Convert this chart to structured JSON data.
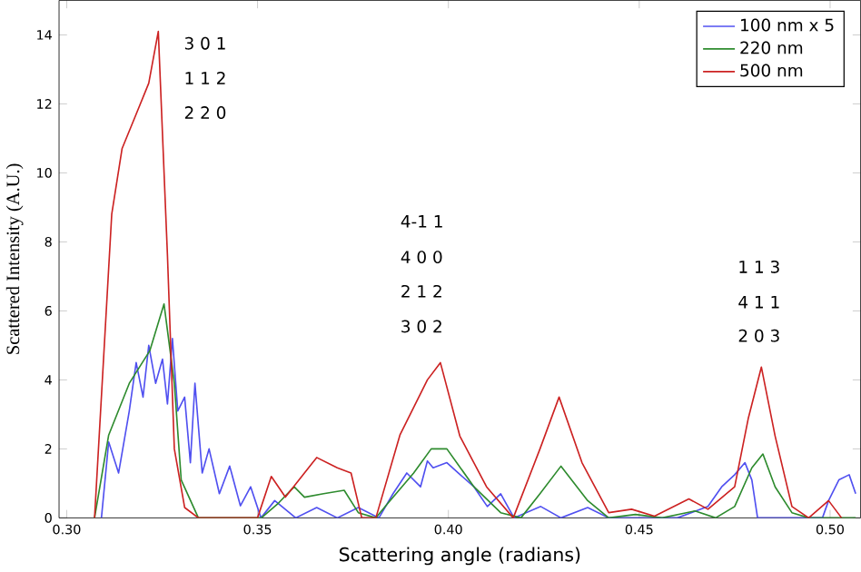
{
  "chart_data": {
    "type": "line",
    "xlabel": "Scattering angle (radians)",
    "ylabel": "Scattered Intensity (A.U.)",
    "xlim": [
      0.298,
      0.508
    ],
    "ylim": [
      0,
      15
    ],
    "xticks": [
      {
        "value": 0.3,
        "label": "0.30"
      },
      {
        "value": 0.35,
        "label": "0.35"
      },
      {
        "value": 0.4,
        "label": "0.40"
      },
      {
        "value": 0.45,
        "label": "0.45"
      },
      {
        "value": 0.5,
        "label": "0.50"
      }
    ],
    "yticks": [
      0,
      2,
      4,
      6,
      8,
      10,
      12,
      14
    ],
    "legend": "top right",
    "grid": false,
    "series": [
      {
        "name": "100 nm x 5",
        "color": "#5050f0",
        "x": [
          0.3091,
          0.311,
          0.3136,
          0.3164,
          0.3182,
          0.32,
          0.3215,
          0.3233,
          0.3251,
          0.3264,
          0.3277,
          0.3291,
          0.3309,
          0.3324,
          0.3336,
          0.3355,
          0.3373,
          0.34,
          0.3427,
          0.3455,
          0.3482,
          0.3509,
          0.3545,
          0.36,
          0.3655,
          0.3709,
          0.3764,
          0.3818,
          0.3855,
          0.3891,
          0.3927,
          0.3945,
          0.396,
          0.3996,
          0.4031,
          0.4067,
          0.4102,
          0.4137,
          0.4172,
          0.4242,
          0.4295,
          0.4365,
          0.442,
          0.46,
          0.468,
          0.4716,
          0.475,
          0.4777,
          0.4795,
          0.481,
          0.498,
          0.4996,
          0.5023,
          0.505,
          0.5067
        ],
        "values": [
          0,
          2.2,
          1.3,
          3.1,
          4.5,
          3.5,
          5.0,
          3.9,
          4.6,
          3.3,
          5.2,
          3.1,
          3.5,
          1.6,
          3.9,
          1.3,
          2.0,
          0.7,
          1.5,
          0.35,
          0.9,
          0,
          0.5,
          0,
          0.3,
          0,
          0.3,
          0,
          0.7,
          1.3,
          0.9,
          1.65,
          1.45,
          1.6,
          1.25,
          0.9,
          0.33,
          0.7,
          0,
          0.33,
          0,
          0.3,
          0,
          0,
          0.33,
          0.9,
          1.25,
          1.6,
          1.1,
          0,
          0,
          0.5,
          1.1,
          1.25,
          0.7
        ]
      },
      {
        "name": "220 nm",
        "color": "#2e8b2e",
        "x": [
          0.3073,
          0.311,
          0.3164,
          0.3218,
          0.3255,
          0.3282,
          0.33,
          0.3345,
          0.351,
          0.3555,
          0.3596,
          0.3623,
          0.3673,
          0.3727,
          0.3764,
          0.381,
          0.3836,
          0.3909,
          0.3955,
          0.3996,
          0.4067,
          0.4137,
          0.419,
          0.424,
          0.4295,
          0.4365,
          0.442,
          0.449,
          0.456,
          0.4646,
          0.47,
          0.475,
          0.4795,
          0.4824,
          0.4856,
          0.49,
          0.4944,
          0.5067
        ],
        "values": [
          0,
          2.4,
          3.9,
          4.85,
          6.2,
          3.9,
          1.1,
          0,
          0,
          0.43,
          0.9,
          0.6,
          0.7,
          0.8,
          0.15,
          0,
          0.35,
          1.3,
          2.0,
          2.0,
          0.9,
          0.15,
          0,
          0.7,
          1.5,
          0.5,
          0,
          0.1,
          0,
          0.2,
          0,
          0.33,
          1.45,
          1.85,
          0.9,
          0.15,
          0,
          0
        ]
      },
      {
        "name": "500 nm",
        "color": "#cc2222",
        "x": [
          0.3073,
          0.3118,
          0.3145,
          0.3182,
          0.3215,
          0.324,
          0.3264,
          0.3282,
          0.3309,
          0.3345,
          0.35,
          0.3536,
          0.3573,
          0.3655,
          0.3709,
          0.3745,
          0.3773,
          0.381,
          0.3873,
          0.3945,
          0.3979,
          0.403,
          0.41,
          0.417,
          0.424,
          0.429,
          0.435,
          0.442,
          0.448,
          0.454,
          0.463,
          0.468,
          0.475,
          0.4786,
          0.482,
          0.4856,
          0.49,
          0.4944,
          0.4996,
          0.503
        ],
        "values": [
          0,
          8.8,
          10.7,
          11.7,
          12.6,
          14.1,
          7.6,
          2.0,
          0.3,
          0,
          0,
          1.2,
          0.6,
          1.75,
          1.45,
          1.3,
          0,
          0,
          2.4,
          4.0,
          4.5,
          2.37,
          0.9,
          0,
          2.0,
          3.5,
          1.6,
          0.15,
          0.25,
          0.05,
          0.55,
          0.25,
          0.9,
          2.9,
          4.37,
          2.37,
          0.33,
          0,
          0.5,
          0
        ]
      }
    ],
    "annotations": [
      "3 0 1",
      "1 1 2",
      "2 2 0",
      "4-1 1",
      "4 0 0",
      "2 1 2",
      "3 0 2",
      "1 1 3",
      "4 1 1",
      "2 0 3"
    ]
  }
}
